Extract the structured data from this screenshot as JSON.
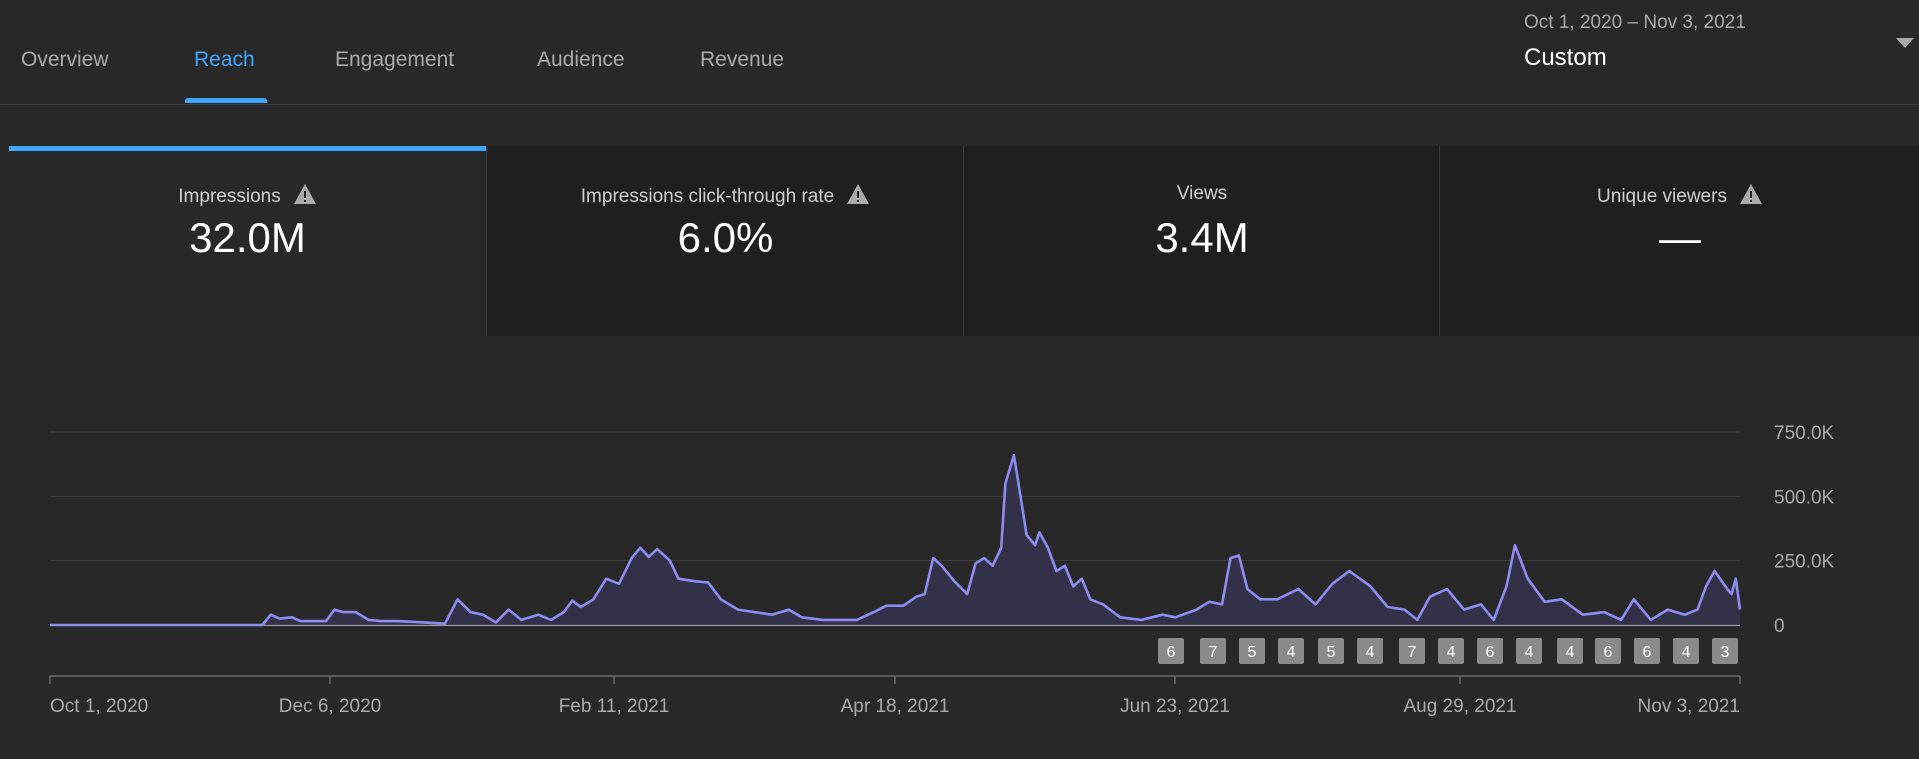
{
  "tabs": [
    {
      "label": "Overview",
      "active": false
    },
    {
      "label": "Reach",
      "active": true
    },
    {
      "label": "Engagement",
      "active": false
    },
    {
      "label": "Audience",
      "active": false
    },
    {
      "label": "Revenue",
      "active": false
    }
  ],
  "date_range": {
    "range": "Oct 1, 2020 – Nov 3, 2021",
    "label": "Custom"
  },
  "metrics": [
    {
      "title": "Impressions",
      "value": "32.0M",
      "warning": true,
      "active": true
    },
    {
      "title": "Impressions click-through rate",
      "value": "6.0%",
      "warning": true,
      "active": false
    },
    {
      "title": "Views",
      "value": "3.4M",
      "warning": false,
      "active": false
    },
    {
      "title": "Unique viewers",
      "value": "—",
      "warning": true,
      "active": false
    }
  ],
  "colors": {
    "accent": "#3ea6ff",
    "line": "#8c8cf2",
    "background": "#282828",
    "card_inactive": "#1f1f1f"
  },
  "icons": {
    "warning": "warning-triangle-icon",
    "dropdown": "caret-down-icon"
  },
  "chart_data": {
    "type": "area",
    "series_name": "Impressions",
    "x_start": "Oct 1, 2020",
    "x_end": "Nov 3, 2021",
    "x_tick_labels": [
      "Oct 1, 2020",
      "Dec 6, 2020",
      "Feb 11, 2021",
      "Apr 18, 2021",
      "Jun 23, 2021",
      "Aug 29, 2021",
      "Nov 3, 2021"
    ],
    "y_tick_labels": [
      "750.0K",
      "500.0K",
      "250.0K",
      "0"
    ],
    "y_ticks": [
      750000,
      500000,
      250000,
      0
    ],
    "ylim": [
      0,
      750000
    ],
    "grid": true,
    "points": [
      [
        "2020-10-01",
        0
      ],
      [
        "2020-11-20",
        0
      ],
      [
        "2020-11-22",
        40000
      ],
      [
        "2020-11-24",
        25000
      ],
      [
        "2020-11-27",
        30000
      ],
      [
        "2020-11-29",
        15000
      ],
      [
        "2020-12-05",
        15000
      ],
      [
        "2020-12-07",
        60000
      ],
      [
        "2020-12-09",
        50000
      ],
      [
        "2020-12-12",
        50000
      ],
      [
        "2020-12-15",
        20000
      ],
      [
        "2020-12-18",
        15000
      ],
      [
        "2020-12-22",
        15000
      ],
      [
        "2020-12-28",
        10000
      ],
      [
        "2021-01-02",
        5000
      ],
      [
        "2021-01-05",
        100000
      ],
      [
        "2021-01-08",
        50000
      ],
      [
        "2021-01-11",
        40000
      ],
      [
        "2021-01-14",
        10000
      ],
      [
        "2021-01-17",
        60000
      ],
      [
        "2021-01-20",
        20000
      ],
      [
        "2021-01-24",
        40000
      ],
      [
        "2021-01-27",
        20000
      ],
      [
        "2021-01-30",
        50000
      ],
      [
        "2021-02-01",
        95000
      ],
      [
        "2021-02-03",
        70000
      ],
      [
        "2021-02-06",
        100000
      ],
      [
        "2021-02-09",
        180000
      ],
      [
        "2021-02-12",
        160000
      ],
      [
        "2021-02-15",
        260000
      ],
      [
        "2021-02-17",
        300000
      ],
      [
        "2021-02-19",
        265000
      ],
      [
        "2021-02-21",
        295000
      ],
      [
        "2021-02-24",
        250000
      ],
      [
        "2021-02-26",
        180000
      ],
      [
        "2021-03-02",
        170000
      ],
      [
        "2021-03-05",
        165000
      ],
      [
        "2021-03-08",
        100000
      ],
      [
        "2021-03-12",
        60000
      ],
      [
        "2021-03-16",
        50000
      ],
      [
        "2021-03-20",
        40000
      ],
      [
        "2021-03-24",
        60000
      ],
      [
        "2021-03-27",
        30000
      ],
      [
        "2021-04-01",
        20000
      ],
      [
        "2021-04-05",
        20000
      ],
      [
        "2021-04-09",
        20000
      ],
      [
        "2021-04-13",
        50000
      ],
      [
        "2021-04-16",
        75000
      ],
      [
        "2021-04-20",
        75000
      ],
      [
        "2021-04-23",
        110000
      ],
      [
        "2021-04-25",
        120000
      ],
      [
        "2021-04-27",
        260000
      ],
      [
        "2021-04-29",
        230000
      ],
      [
        "2021-05-02",
        170000
      ],
      [
        "2021-05-05",
        120000
      ],
      [
        "2021-05-07",
        240000
      ],
      [
        "2021-05-09",
        260000
      ],
      [
        "2021-05-11",
        230000
      ],
      [
        "2021-05-13",
        300000
      ],
      [
        "2021-05-14",
        550000
      ],
      [
        "2021-05-16",
        660000
      ],
      [
        "2021-05-17",
        560000
      ],
      [
        "2021-05-19",
        350000
      ],
      [
        "2021-05-21",
        310000
      ],
      [
        "2021-05-22",
        360000
      ],
      [
        "2021-05-24",
        300000
      ],
      [
        "2021-05-26",
        210000
      ],
      [
        "2021-05-28",
        230000
      ],
      [
        "2021-05-30",
        150000
      ],
      [
        "2021-06-01",
        180000
      ],
      [
        "2021-06-03",
        100000
      ],
      [
        "2021-06-06",
        80000
      ],
      [
        "2021-06-10",
        30000
      ],
      [
        "2021-06-15",
        20000
      ],
      [
        "2021-06-20",
        40000
      ],
      [
        "2021-06-23",
        30000
      ],
      [
        "2021-06-28",
        60000
      ],
      [
        "2021-07-01",
        90000
      ],
      [
        "2021-07-04",
        80000
      ],
      [
        "2021-07-06",
        260000
      ],
      [
        "2021-07-08",
        270000
      ],
      [
        "2021-07-10",
        140000
      ],
      [
        "2021-07-13",
        100000
      ],
      [
        "2021-07-17",
        100000
      ],
      [
        "2021-07-22",
        140000
      ],
      [
        "2021-07-26",
        80000
      ],
      [
        "2021-07-30",
        160000
      ],
      [
        "2021-08-03",
        210000
      ],
      [
        "2021-08-08",
        150000
      ],
      [
        "2021-08-12",
        70000
      ],
      [
        "2021-08-16",
        60000
      ],
      [
        "2021-08-19",
        20000
      ],
      [
        "2021-08-22",
        110000
      ],
      [
        "2021-08-26",
        140000
      ],
      [
        "2021-08-30",
        60000
      ],
      [
        "2021-09-03",
        80000
      ],
      [
        "2021-09-06",
        20000
      ],
      [
        "2021-09-09",
        150000
      ],
      [
        "2021-09-11",
        310000
      ],
      [
        "2021-09-14",
        180000
      ],
      [
        "2021-09-18",
        90000
      ],
      [
        "2021-09-22",
        100000
      ],
      [
        "2021-09-27",
        40000
      ],
      [
        "2021-10-02",
        50000
      ],
      [
        "2021-10-06",
        20000
      ],
      [
        "2021-10-09",
        100000
      ],
      [
        "2021-10-13",
        20000
      ],
      [
        "2021-10-17",
        60000
      ],
      [
        "2021-10-21",
        40000
      ],
      [
        "2021-10-24",
        60000
      ],
      [
        "2021-10-26",
        150000
      ],
      [
        "2021-10-28",
        210000
      ],
      [
        "2021-10-31",
        140000
      ],
      [
        "2021-11-01",
        120000
      ],
      [
        "2021-11-02",
        180000
      ],
      [
        "2021-11-03",
        60000
      ]
    ],
    "annotation_badges": [
      {
        "date": "2021-06-23",
        "label": "6"
      },
      {
        "date": "2021-07-04",
        "label": "7"
      },
      {
        "date": "2021-07-14",
        "label": "5"
      },
      {
        "date": "2021-07-24",
        "label": "4"
      },
      {
        "date": "2021-08-04",
        "label": "5"
      },
      {
        "date": "2021-08-14",
        "label": "4"
      },
      {
        "date": "2021-08-25",
        "label": "7"
      },
      {
        "date": "2021-09-04",
        "label": "4"
      },
      {
        "date": "2021-09-14",
        "label": "6"
      },
      {
        "date": "2021-09-24",
        "label": "4"
      },
      {
        "date": "2021-10-05",
        "label": "4"
      },
      {
        "date": "2021-10-15",
        "label": "6"
      },
      {
        "date": "2021-10-25",
        "label": "6"
      },
      {
        "date": "2021-11-04",
        "label": "4"
      },
      {
        "date": "2021-11-14",
        "label": "3"
      }
    ]
  }
}
